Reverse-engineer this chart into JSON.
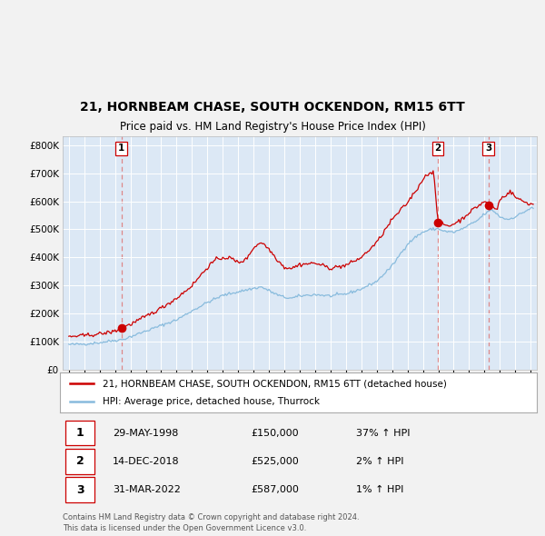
{
  "title": "21, HORNBEAM CHASE, SOUTH OCKENDON, RM15 6TT",
  "subtitle": "Price paid vs. HM Land Registry's House Price Index (HPI)",
  "legend_line1": "21, HORNBEAM CHASE, SOUTH OCKENDON, RM15 6TT (detached house)",
  "legend_line2": "HPI: Average price, detached house, Thurrock",
  "transactions": [
    {
      "num": 1,
      "date_num": 1998.413,
      "price": 150000,
      "label": "29-MAY-1998",
      "price_label": "£150,000",
      "hpi_pct": "37% ↑ HPI"
    },
    {
      "num": 2,
      "date_num": 2018.958,
      "price": 525000,
      "label": "14-DEC-2018",
      "price_label": "£525,000",
      "hpi_pct": "2% ↑ HPI"
    },
    {
      "num": 3,
      "date_num": 2022.25,
      "price": 587000,
      "label": "31-MAR-2022",
      "price_label": "£587,000",
      "hpi_pct": "1% ↑ HPI"
    }
  ],
  "footer_line1": "Contains HM Land Registry data © Crown copyright and database right 2024.",
  "footer_line2": "This data is licensed under the Open Government Licence v3.0.",
  "ylim": [
    0,
    830000
  ],
  "yticks": [
    0,
    100000,
    200000,
    300000,
    400000,
    500000,
    600000,
    700000,
    800000
  ],
  "ytick_labels": [
    "£0",
    "£100K",
    "£200K",
    "£300K",
    "£400K",
    "£500K",
    "£600K",
    "£700K",
    "£800K"
  ],
  "xlim_start": 1994.6,
  "xlim_end": 2025.4,
  "bg_color": "#f0f0f0",
  "plot_bg_color": "#dce8f5",
  "red_line_color": "#cc0000",
  "blue_line_color": "#88bbdd",
  "marker_color": "#cc0000",
  "dashed_line_color": "#dd8888",
  "grid_color": "#ffffff"
}
